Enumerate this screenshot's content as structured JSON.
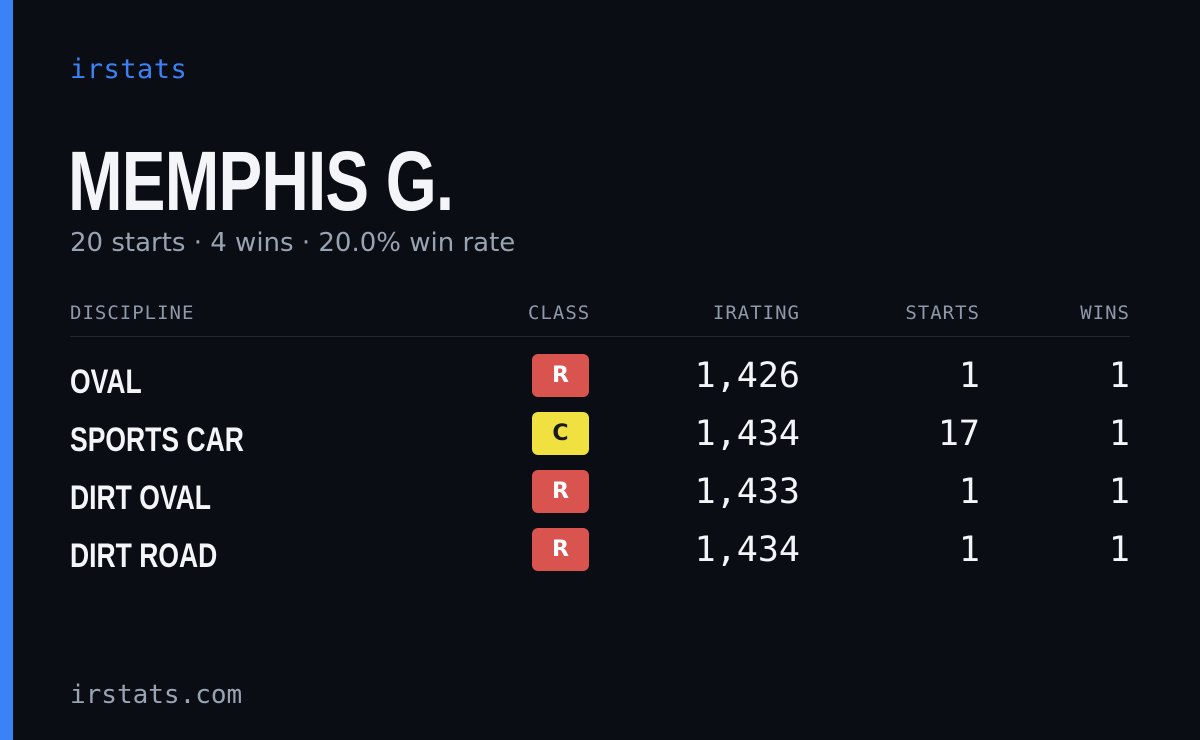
{
  "brand": "irstats",
  "driver": {
    "name": "MEMPHIS G.",
    "summary": "20 starts · 4 wins · 20.0% win rate"
  },
  "table": {
    "headers": {
      "discipline": "DISCIPLINE",
      "class": "CLASS",
      "irating": "IRATING",
      "starts": "STARTS",
      "wins": "WINS"
    },
    "rows": [
      {
        "discipline": "OVAL",
        "class": "R",
        "class_color": "#d9534f",
        "class_text_color": "#ffffff",
        "irating": "1,426",
        "starts": "1",
        "wins": "1"
      },
      {
        "discipline": "SPORTS CAR",
        "class": "C",
        "class_color": "#f0e040",
        "class_text_color": "#1a1a1a",
        "irating": "1,434",
        "starts": "17",
        "wins": "1"
      },
      {
        "discipline": "DIRT OVAL",
        "class": "R",
        "class_color": "#d9534f",
        "class_text_color": "#ffffff",
        "irating": "1,433",
        "starts": "1",
        "wins": "1"
      },
      {
        "discipline": "DIRT ROAD",
        "class": "R",
        "class_color": "#d9534f",
        "class_text_color": "#ffffff",
        "irating": "1,434",
        "starts": "1",
        "wins": "1"
      }
    ]
  },
  "footer": "irstats.com",
  "colors": {
    "background": "#0a0d14",
    "accent": "#3b82f6",
    "text": "#f4f5f8",
    "muted": "#9aa3b2"
  }
}
